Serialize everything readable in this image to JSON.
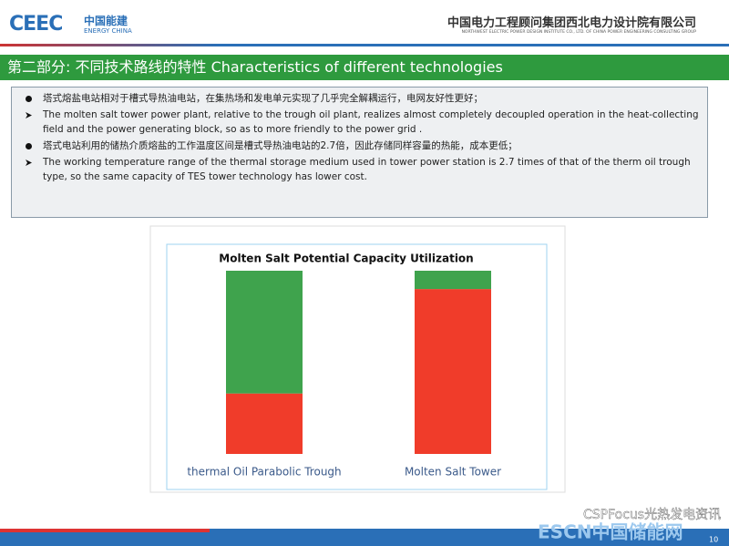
{
  "header": {
    "logo": "CEEC",
    "logo_cn": "中国能建",
    "logo_en": "ENERGY CHINA",
    "org": "中国电力工程顾问集团西北电力设计院有限公司",
    "org_en": "NORTHWEST ELECTRIC POWER DESIGN INSTITUTE CO., LTD. OF CHINA POWER ENGINEERING CONSULTING GROUP"
  },
  "section_title": "第二部分: 不同技术路线的特性 Characteristics of different technologies",
  "bullets": [
    "塔式熔盐电站相对于槽式导热油电站，在集热场和发电单元实现了几乎完全解耦运行，电网友好性更好；",
    "The molten salt tower power plant, relative to the trough oil plant, realizes almost completely decoupled operation in the heat-collecting field and the power generating block, so as to more friendly to the power grid .",
    "塔式电站利用的储热介质熔盐的工作温度区间是槽式导热油电站的2.7倍，因此存储同样容量的热能，成本更低；",
    "The working temperature range of the thermal storage medium used in tower power station is 2.7 times of that of the therm oil trough type, so the same capacity of TES   tower technology has lower cost."
  ],
  "chart_data": {
    "type": "bar",
    "stacked": true,
    "title": "Molten Salt Potential Capacity Utilization",
    "categories": [
      "thermal Oil Parabolic Trough",
      "Molten Salt Tower"
    ],
    "series": [
      {
        "color": "#f03c2a",
        "values": [
          33,
          90
        ]
      },
      {
        "color": "#3fa34d",
        "values": [
          67,
          10
        ]
      }
    ]
  },
  "footer": {
    "watermark": "CSPFocus光热发电资讯",
    "watermark2": "ESCN中国储能网",
    "page": "10"
  }
}
